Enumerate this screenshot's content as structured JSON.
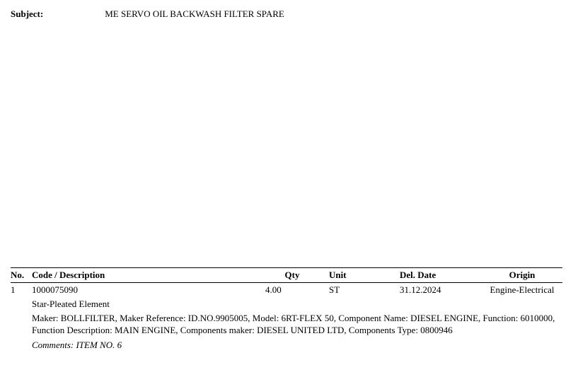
{
  "subject": {
    "label": "Subject:",
    "value": "ME SERVO OIL BACKWASH FILTER SPARE"
  },
  "table": {
    "headers": {
      "no": "No.",
      "code": "Code / Description",
      "qty": "Qty",
      "unit": "Unit",
      "del": "Del. Date",
      "origin": "Origin"
    },
    "items": [
      {
        "no": "1",
        "code": "1000075090",
        "qty": "4.00",
        "unit": "ST",
        "del": "31.12.2024",
        "origin": "Engine-Electrical",
        "desc": "Star-Pleated Element",
        "maker": "Maker: BOLLFILTER, Maker Reference: ID.NO.9905005, Model: 6RT-FLEX 50, Component Name: DIESEL ENGINE, Function: 6010000, Function Description: MAIN ENGINE, Components maker: DIESEL UNITED LTD, Components Type: 0800946",
        "comments": "Comments: ITEM NO. 6"
      }
    ]
  }
}
